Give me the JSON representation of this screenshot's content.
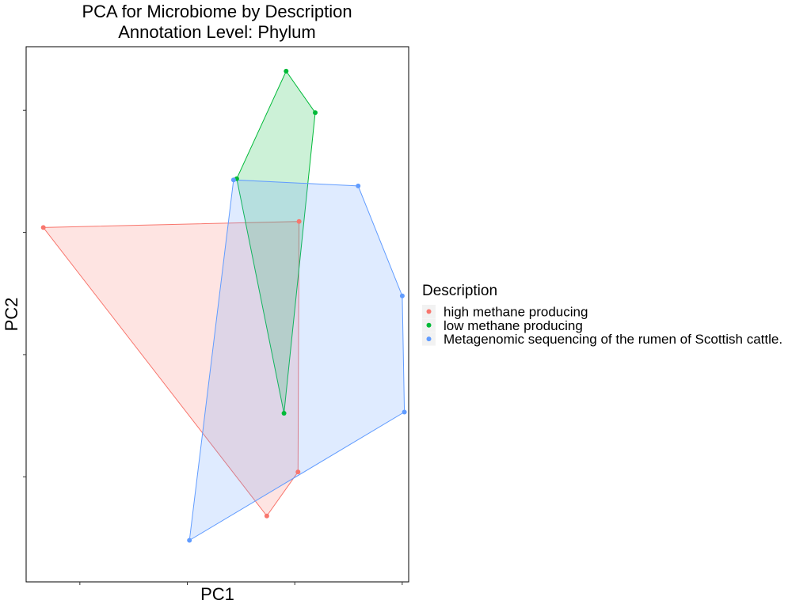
{
  "chart_data": {
    "type": "scatter",
    "title_line1": "PCA for Microbiome by Description",
    "title_line2": "Annotation Level: Phylum",
    "xlabel": "PC1",
    "ylabel": "PC2",
    "xlim": [
      -2.5,
      15.3
    ],
    "ylim": [
      -4.3,
      17.6
    ],
    "grid": false,
    "x_tick_labels_shown": false,
    "y_tick_labels_shown": false,
    "hulls_shown": true,
    "legend": {
      "title": "Description",
      "position": "right"
    },
    "series": [
      {
        "name": "high methane producing",
        "color": "#F8766D",
        "points": [
          {
            "x": -1.7,
            "y": 10.2
          },
          {
            "x": 10.2,
            "y": 10.45
          },
          {
            "x": 10.15,
            "y": 0.2
          },
          {
            "x": 8.7,
            "y": -1.6
          }
        ]
      },
      {
        "name": "low methane producing",
        "color": "#00BA38",
        "points": [
          {
            "x": 9.6,
            "y": 16.6
          },
          {
            "x": 10.95,
            "y": 14.9
          },
          {
            "x": 7.3,
            "y": 12.2
          },
          {
            "x": 9.5,
            "y": 2.6
          }
        ]
      },
      {
        "name": "Metagenomic sequencing of the rumen of Scottish cattle.",
        "color": "#619CFF",
        "points": [
          {
            "x": 7.15,
            "y": 12.15
          },
          {
            "x": 12.95,
            "y": 11.9
          },
          {
            "x": 15.0,
            "y": 7.4
          },
          {
            "x": 15.1,
            "y": 2.65
          },
          {
            "x": 5.1,
            "y": -2.6
          }
        ]
      }
    ]
  }
}
